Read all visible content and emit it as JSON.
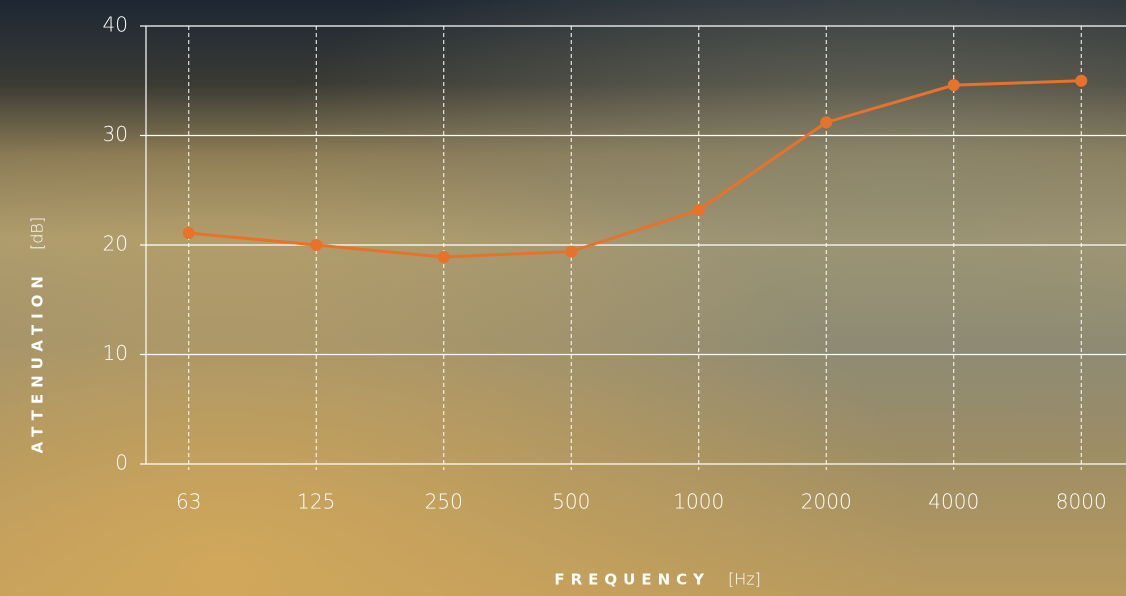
{
  "chart_data": {
    "type": "line",
    "y_label": "ATTENUATION",
    "y_unit": "[dB]",
    "x_label": "FREQUENCY",
    "x_unit": "[Hz]",
    "categories": [
      "63",
      "125",
      "250",
      "500",
      "1000",
      "2000",
      "4000",
      "8000"
    ],
    "series": [
      {
        "color": "#e8722a",
        "values": [
          21.1,
          20.0,
          18.9,
          19.4,
          23.2,
          31.2,
          34.6,
          35.0
        ]
      }
    ],
    "ylim": [
      0,
      40
    ],
    "yticks": [
      0,
      10,
      20,
      30,
      40
    ],
    "grid": true
  }
}
